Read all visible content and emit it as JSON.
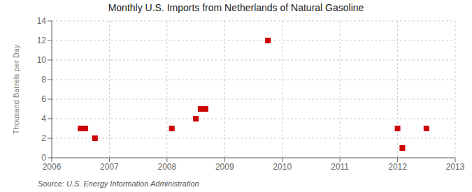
{
  "chart_data": {
    "type": "scatter",
    "title": "Monthly U.S. Imports from Netherlands of Natural Gasoline",
    "ylabel": "Thousand Barrels per Day",
    "annotations": [
      "Source: U.S. Energy Information Administration"
    ],
    "x": [
      2006.5,
      2006.583,
      2006.75,
      2008.083,
      2008.5,
      2008.583,
      2008.667,
      2009.75,
      2012.0,
      2012.083,
      2012.5
    ],
    "values": [
      3,
      3,
      2,
      3,
      4,
      5,
      5,
      12,
      3,
      1,
      3
    ],
    "color": "#cc0000",
    "marker": "square",
    "xlim": [
      2006,
      2013
    ],
    "xticks": [
      2006,
      2007,
      2008,
      2009,
      2010,
      2011,
      2012,
      2013
    ],
    "ylim": [
      0,
      14
    ],
    "yticks": [
      0,
      2,
      4,
      6,
      8,
      10,
      12,
      14
    ],
    "grid": true
  }
}
